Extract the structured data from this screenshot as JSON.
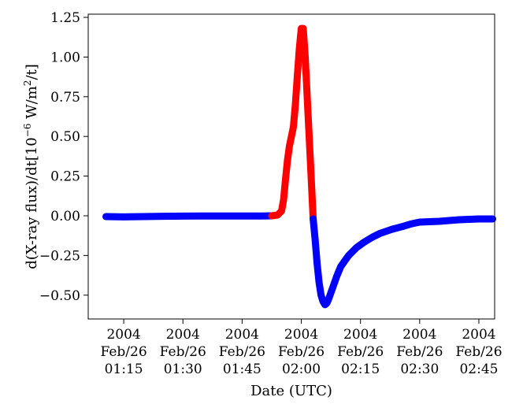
{
  "chart_data": {
    "type": "line",
    "title": "",
    "xlabel": "Date (UTC)",
    "ylabel_main": "d(X-ray flux)/dt[10",
    "ylabel_exp1": "−6",
    "ylabel_mid": " W/m",
    "ylabel_exp2": "2",
    "ylabel_end": "/t]",
    "x_unit": "minutes after 2004-02-26 01:00 UTC",
    "xlim": [
      6,
      109
    ],
    "ylim": [
      -0.65,
      1.27
    ],
    "grid": false,
    "legend": "none",
    "x_ticks": [
      {
        "value": 15,
        "lines": [
          "2004",
          "Feb/26",
          "01:15"
        ]
      },
      {
        "value": 30,
        "lines": [
          "2004",
          "Feb/26",
          "01:30"
        ]
      },
      {
        "value": 45,
        "lines": [
          "2004",
          "Feb/26",
          "01:45"
        ]
      },
      {
        "value": 60,
        "lines": [
          "2004",
          "Feb/26",
          "02:00"
        ]
      },
      {
        "value": 75,
        "lines": [
          "2004",
          "Feb/26",
          "02:15"
        ]
      },
      {
        "value": 90,
        "lines": [
          "2004",
          "Feb/26",
          "02:30"
        ]
      },
      {
        "value": 105,
        "lines": [
          "2004",
          "Feb/26",
          "02:45"
        ]
      }
    ],
    "y_ticks": [
      {
        "value": 1.25,
        "label": "1.25"
      },
      {
        "value": 1.0,
        "label": "1.00"
      },
      {
        "value": 0.75,
        "label": "0.75"
      },
      {
        "value": 0.5,
        "label": "0.50"
      },
      {
        "value": 0.25,
        "label": "0.25"
      },
      {
        "value": 0.0,
        "label": "0.00"
      },
      {
        "value": -0.25,
        "label": "−0.25"
      },
      {
        "value": -0.5,
        "label": "−0.50"
      }
    ],
    "series": [
      {
        "color": "#0000ff",
        "x": [
          10.5,
          15,
          20,
          25,
          30,
          35,
          40,
          45,
          50,
          52.5
        ],
        "y": [
          -0.005,
          -0.007,
          -0.005,
          -0.003,
          -0.002,
          -0.001,
          -0.001,
          -0.001,
          -0.001,
          0.0
        ]
      },
      {
        "color": "#ff0000",
        "x": [
          52.5,
          54,
          55,
          55.5,
          56,
          56.5,
          57,
          57.5,
          58,
          58.5,
          59,
          59.5,
          60,
          60.5,
          61,
          61.5,
          62,
          62.5,
          63
        ],
        "y": [
          0.0,
          0.005,
          0.03,
          0.1,
          0.23,
          0.35,
          0.44,
          0.5,
          0.56,
          0.7,
          0.88,
          1.05,
          1.18,
          1.18,
          1.0,
          0.75,
          0.5,
          0.25,
          -0.02
        ]
      },
      {
        "color": "#0000ff",
        "x": [
          63,
          63.5,
          64,
          64.5,
          65,
          65.5,
          66,
          66.5,
          67,
          68,
          69,
          70,
          72,
          74,
          76,
          78,
          80,
          83,
          86,
          88,
          90,
          95,
          100,
          105,
          108.5
        ],
        "y": [
          -0.02,
          -0.15,
          -0.3,
          -0.42,
          -0.5,
          -0.54,
          -0.56,
          -0.55,
          -0.52,
          -0.45,
          -0.38,
          -0.32,
          -0.25,
          -0.2,
          -0.165,
          -0.135,
          -0.11,
          -0.085,
          -0.065,
          -0.05,
          -0.04,
          -0.035,
          -0.025,
          -0.02,
          -0.02
        ]
      }
    ]
  }
}
